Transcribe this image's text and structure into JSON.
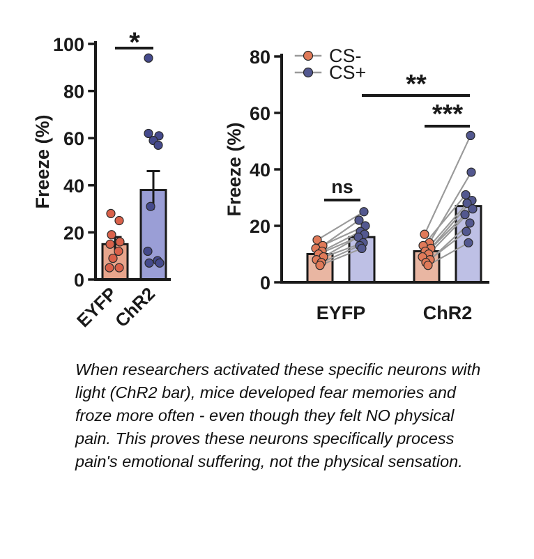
{
  "caption": "When researchers activated these specific neurons with light (ChR2 bar), mice developed fear memories and froze more often - even though they felt NO physical pain. This proves these neurons specifically process pain's emotional suffering, not the physical sensation.",
  "colors": {
    "eyfp_fill": "#e8a58c",
    "eyfp_dot": "#d9614a",
    "chr2_fill": "#9a9ed6",
    "chr2_dot": "#454a8c",
    "csminus_fill": "#e8b29d",
    "csminus_dot": "#e07a59",
    "csplus_fill": "#bbbde4",
    "csplus_dot": "#53588f",
    "line": "#9a9a9a",
    "axis": "#1a1a1a"
  },
  "chart_data": [
    {
      "type": "bar",
      "categories": [
        "EYFP",
        "ChR2"
      ],
      "values": [
        15,
        38
      ],
      "sem": [
        3,
        8
      ],
      "ylabel": "Freeze (%)",
      "ylim": [
        0,
        100
      ],
      "yticks": [
        0,
        20,
        40,
        60,
        80,
        100
      ],
      "points": [
        [
          28,
          25,
          19,
          16,
          15,
          12,
          9,
          5,
          5
        ],
        [
          94,
          62,
          61,
          59,
          57,
          31,
          12,
          8,
          7,
          7
        ]
      ],
      "significance": [
        {
          "label": "*",
          "between": [
            "EYFP",
            "ChR2"
          ]
        }
      ]
    },
    {
      "type": "bar",
      "categories": [
        "EYFP",
        "ChR2"
      ],
      "series": [
        {
          "name": "CS-",
          "values": [
            10,
            11
          ],
          "points": [
            [
              15,
              13,
              12,
              11,
              10,
              9,
              8,
              7,
              6
            ],
            [
              17,
              14,
              13,
              12,
              11,
              10,
              9,
              8,
              7,
              6
            ]
          ]
        },
        {
          "name": "CS+",
          "values": [
            16,
            27
          ],
          "points": [
            [
              25,
              22,
              20,
              18,
              17,
              16,
              14,
              13,
              12
            ],
            [
              52,
              39,
              31,
              29,
              28,
              26,
              24,
              21,
              18,
              14
            ]
          ]
        }
      ],
      "ylabel": "Freeze (%)",
      "ylim": [
        0,
        80
      ],
      "yticks": [
        0,
        20,
        40,
        60,
        80
      ],
      "legend": "top-left",
      "significance": [
        {
          "label": "ns",
          "between": [
            "EYFP CS-",
            "EYFP CS+"
          ]
        },
        {
          "label": "***",
          "between": [
            "ChR2 CS-",
            "ChR2 CS+"
          ]
        },
        {
          "label": "**",
          "between": [
            "EYFP CS+",
            "ChR2 CS+"
          ]
        }
      ]
    }
  ]
}
